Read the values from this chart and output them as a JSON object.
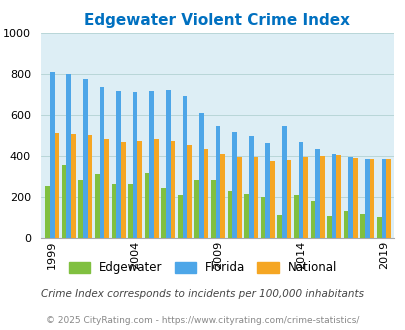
{
  "title": "Edgewater Violent Crime Index",
  "years": [
    1999,
    2000,
    2001,
    2002,
    2003,
    2004,
    2005,
    2006,
    2007,
    2008,
    2009,
    2010,
    2011,
    2012,
    2013,
    2014,
    2015,
    2016,
    2017,
    2018,
    2019
  ],
  "edgewater": [
    250,
    355,
    280,
    310,
    260,
    260,
    315,
    240,
    210,
    280,
    280,
    230,
    215,
    200,
    110,
    210,
    180,
    105,
    130,
    115,
    100
  ],
  "florida": [
    810,
    800,
    775,
    735,
    715,
    710,
    715,
    720,
    690,
    610,
    545,
    515,
    495,
    460,
    545,
    465,
    435,
    410,
    395,
    385,
    385
  ],
  "national": [
    510,
    505,
    500,
    480,
    465,
    470,
    480,
    470,
    455,
    435,
    410,
    395,
    395,
    375,
    380,
    395,
    400,
    405,
    390,
    385,
    385
  ],
  "ylim": [
    0,
    1000
  ],
  "yticks": [
    0,
    200,
    400,
    600,
    800,
    1000
  ],
  "bar_width": 0.28,
  "color_edgewater": "#80c040",
  "color_florida": "#4da6e8",
  "color_national": "#f5a623",
  "bg_color": "#ddeef5",
  "title_color": "#0070c0",
  "title_fontsize": 11,
  "xlabel_ticks": [
    1999,
    2004,
    2009,
    2014,
    2019
  ],
  "subtitle": "Crime Index corresponds to incidents per 100,000 inhabitants",
  "footer": "© 2025 CityRating.com - https://www.cityrating.com/crime-statistics/",
  "subtitle_color": "#444444",
  "footer_color": "#888888"
}
